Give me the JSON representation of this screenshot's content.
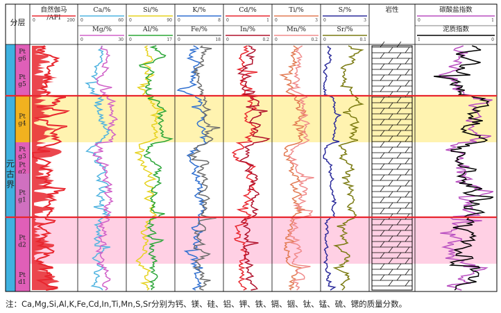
{
  "chart_data": {
    "type": "line",
    "group_label": "分层",
    "era_label": "元古界",
    "units": [
      "Pt g6",
      "Pt g5",
      "Pt g4",
      "Pt g3",
      "Pt g2",
      "Pt g1",
      "Pt d2",
      "Pt d1"
    ],
    "tracks": [
      {
        "curves": [
          {
            "name": "自然伽马",
            "unit": "/API",
            "color": "#e8262e",
            "min": "0",
            "max": "200"
          }
        ]
      },
      {
        "curves": [
          {
            "name": "Ca/%",
            "color": "#4fb3e0",
            "min": "0",
            "max": "60"
          },
          {
            "name": "Mg/%",
            "color": "#d060c8",
            "min": "0",
            "max": "30"
          }
        ]
      },
      {
        "curves": [
          {
            "name": "Si/%",
            "color": "#e6d21e",
            "min": "0",
            "max": "90"
          },
          {
            "name": "Al/%",
            "color": "#2aa536",
            "min": "0",
            "max": "17"
          }
        ]
      },
      {
        "curves": [
          {
            "name": "K/%",
            "color": "#2f6fd0",
            "min": "0",
            "max": "8"
          },
          {
            "name": "Fe/%",
            "color": "#6b6b6b",
            "min": "0",
            "max": "18"
          }
        ]
      },
      {
        "curves": [
          {
            "name": "Cd/%",
            "color": "#e8262e",
            "min": "0",
            "max": "1"
          },
          {
            "name": "In/%",
            "color": "#b0102a",
            "min": "0",
            "max": "0.2"
          }
        ]
      },
      {
        "curves": [
          {
            "name": "Ti/%",
            "color": "#e27a52",
            "min": "0",
            "max": "3"
          },
          {
            "name": "Mn/%",
            "color": "#f08a8a",
            "min": "0",
            "max": "0.2"
          }
        ]
      },
      {
        "curves": [
          {
            "name": "S/%",
            "color": "#2a2a9a",
            "min": "0",
            "max": "3"
          },
          {
            "name": "Sr/%",
            "color": "#7a7a10",
            "min": "0",
            "max": "0.1"
          }
        ]
      },
      {
        "curves": [
          {
            "name": "岩性",
            "color": "#000000"
          }
        ]
      },
      {
        "curves": [
          {
            "name": "碳酸盐指数",
            "color": "#b84fc0",
            "min": "0",
            "max": "1"
          },
          {
            "name": "泥质指数",
            "color": "#000000",
            "min": "1",
            "max": "0"
          }
        ]
      }
    ],
    "highlights": [
      {
        "unit": "Pt g4",
        "color": "#fff3b0"
      },
      {
        "unit": "Pt d2",
        "color": "#ffd0e4"
      }
    ],
    "note": "注：Ca,Mg,Si,Al,K,Fe,Cd,In,Ti,Mn,S,Sr分别为钙、镁、硅、铝、钾、铁、镉、铟、钛、锰、硫、锶的质量分数。"
  }
}
